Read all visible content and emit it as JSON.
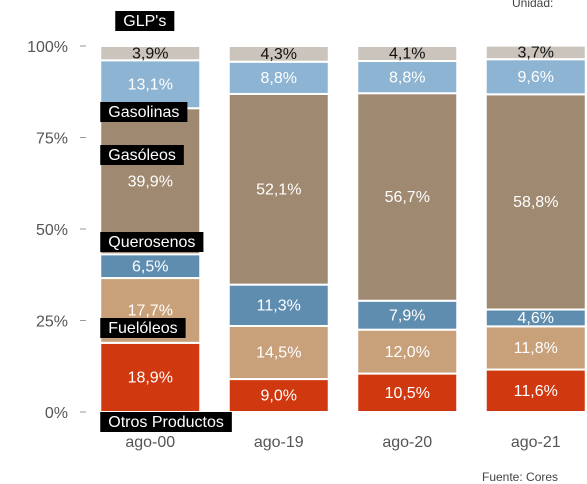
{
  "chart_data": {
    "type": "stacked_bar",
    "unit_note": "Unidad:",
    "source": "Fuente: Cores",
    "categories": [
      "ago-00",
      "ago-19",
      "ago-20",
      "ago-21"
    ],
    "ylim": [
      0,
      100
    ],
    "yticks": [
      {
        "value": 0,
        "label": "0%"
      },
      {
        "value": 25,
        "label": "25%"
      },
      {
        "value": 50,
        "label": "50%"
      },
      {
        "value": 75,
        "label": "75%"
      },
      {
        "value": 100,
        "label": "100%"
      }
    ],
    "series": [
      {
        "name": "Otros Productos",
        "color": "#d0390f",
        "values": [
          18.9,
          9.0,
          10.5,
          11.6
        ],
        "value_labels": [
          "18,9%",
          "9,0%",
          "10,5%",
          "11,6%"
        ]
      },
      {
        "name": "Fuelóleos",
        "color": "#c8a07a",
        "values": [
          17.7,
          14.5,
          12.0,
          11.8
        ],
        "value_labels": [
          "17,7%",
          "14,5%",
          "12,0%",
          "11,8%"
        ]
      },
      {
        "name": "Querosenos",
        "color": "#5e8db0",
        "values": [
          6.5,
          11.3,
          7.9,
          4.6
        ],
        "value_labels": [
          "6,5%",
          "11,3%",
          "7,9%",
          "4,6%"
        ]
      },
      {
        "name": "Gasóleos",
        "color": "#a08971",
        "values": [
          39.9,
          52.1,
          56.7,
          58.8
        ],
        "value_labels": [
          "39,9%",
          "52,1%",
          "56,7%",
          "58,8%"
        ]
      },
      {
        "name": "Gasolinas",
        "color": "#8db4d2",
        "values": [
          13.1,
          8.8,
          8.8,
          9.6
        ],
        "value_labels": [
          "13,1%",
          "8,8%",
          "8,8%",
          "9,6%"
        ]
      },
      {
        "name": "GLP's",
        "color": "#cbc4bc",
        "values": [
          3.9,
          4.3,
          4.1,
          3.7
        ],
        "value_labels": [
          "3,9%",
          "4,3%",
          "4,1%",
          "3,7%"
        ]
      }
    ]
  }
}
